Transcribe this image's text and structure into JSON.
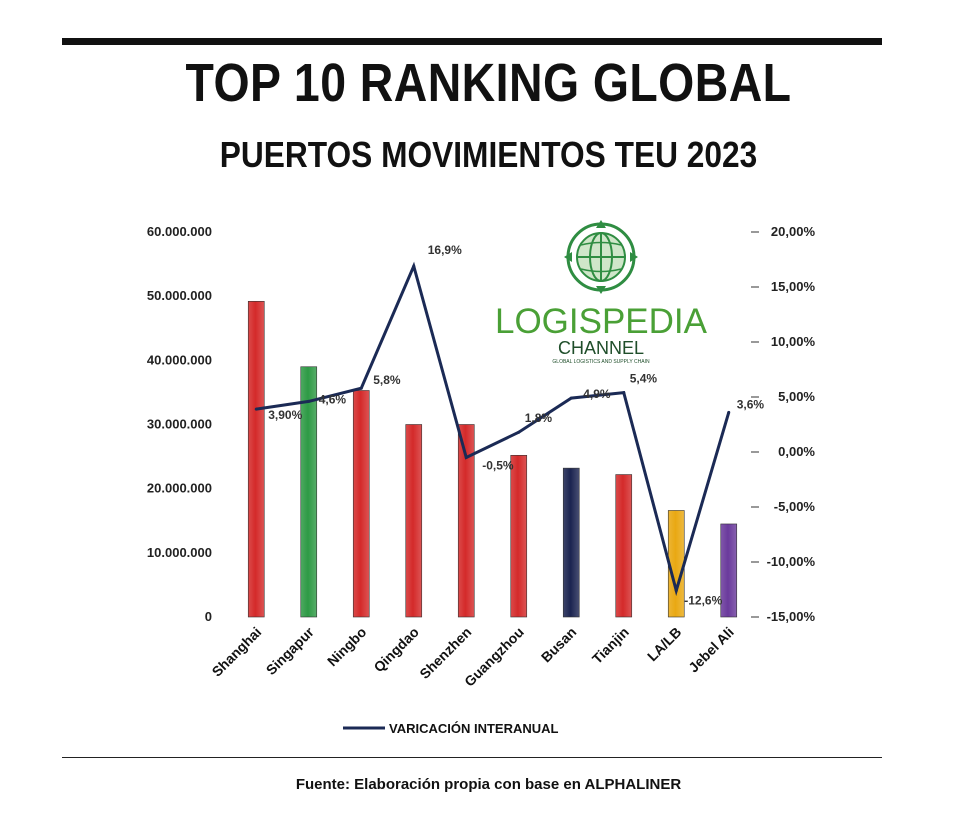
{
  "header": {
    "title": "TOP 10 RANKING GLOBAL",
    "subtitle": "PUERTOS MOVIMIENTOS TEU 2023"
  },
  "logo": {
    "name": "LOGISPEDIA",
    "sub": "CHANNEL",
    "tagline": "GLOBAL LOGISTICS AND SUPPLY CHAIN"
  },
  "footer": {
    "source": "Fuente: Elaboración propia con base en ALPHALINER"
  },
  "chart_data": {
    "type": "bar",
    "title": "TOP 10 RANKING GLOBAL - PUERTOS MOVIMIENTOS TEU 2023",
    "categories": [
      "Shanghai",
      "Singapur",
      "Ningbo",
      "Qingdao",
      "Shenzhen",
      "Guangzhou",
      "Busan",
      "Tianjin",
      "LA/LB",
      "Jebel Ali"
    ],
    "values": [
      49200000,
      39000000,
      35300000,
      30000000,
      30000000,
      25200000,
      23200000,
      22200000,
      16600000,
      14500000
    ],
    "bar_colors": [
      "#d42a2a",
      "#2e9a45",
      "#d42a2a",
      "#d42a2a",
      "#d42a2a",
      "#d42a2a",
      "#1b2450",
      "#d42a2a",
      "#e9a812",
      "#6a3a9c"
    ],
    "ylim": [
      0,
      60000000
    ],
    "yticks": [
      "0",
      "10.000.000",
      "20.000.000",
      "30.000.000",
      "40.000.000",
      "50.000.000",
      "60.000.000"
    ],
    "ytick_values": [
      0,
      10000000,
      20000000,
      30000000,
      40000000,
      50000000,
      60000000
    ],
    "y2lim": [
      -15,
      20
    ],
    "y2ticks": [
      "-15,00%",
      "-10,00%",
      "-5,00%",
      "0,00%",
      "5,00%",
      "10,00%",
      "15,00%",
      "20,00%"
    ],
    "y2tick_values": [
      -15,
      -10,
      -5,
      0,
      5,
      10,
      15,
      20
    ],
    "line": {
      "name": "VARICACIÓN INTERANUAL",
      "color": "#1b2a55",
      "values": [
        3.9,
        4.6,
        5.8,
        16.9,
        -0.5,
        1.8,
        4.9,
        5.4,
        -12.6,
        3.6
      ],
      "labels": [
        "3,90%",
        "4,6%",
        "5,8%",
        "16,9%",
        "-0,5%",
        "1,8%",
        "4,9%",
        "5,4%",
        "-12,6%",
        "3,6%"
      ]
    },
    "legend": "bottom-center"
  }
}
